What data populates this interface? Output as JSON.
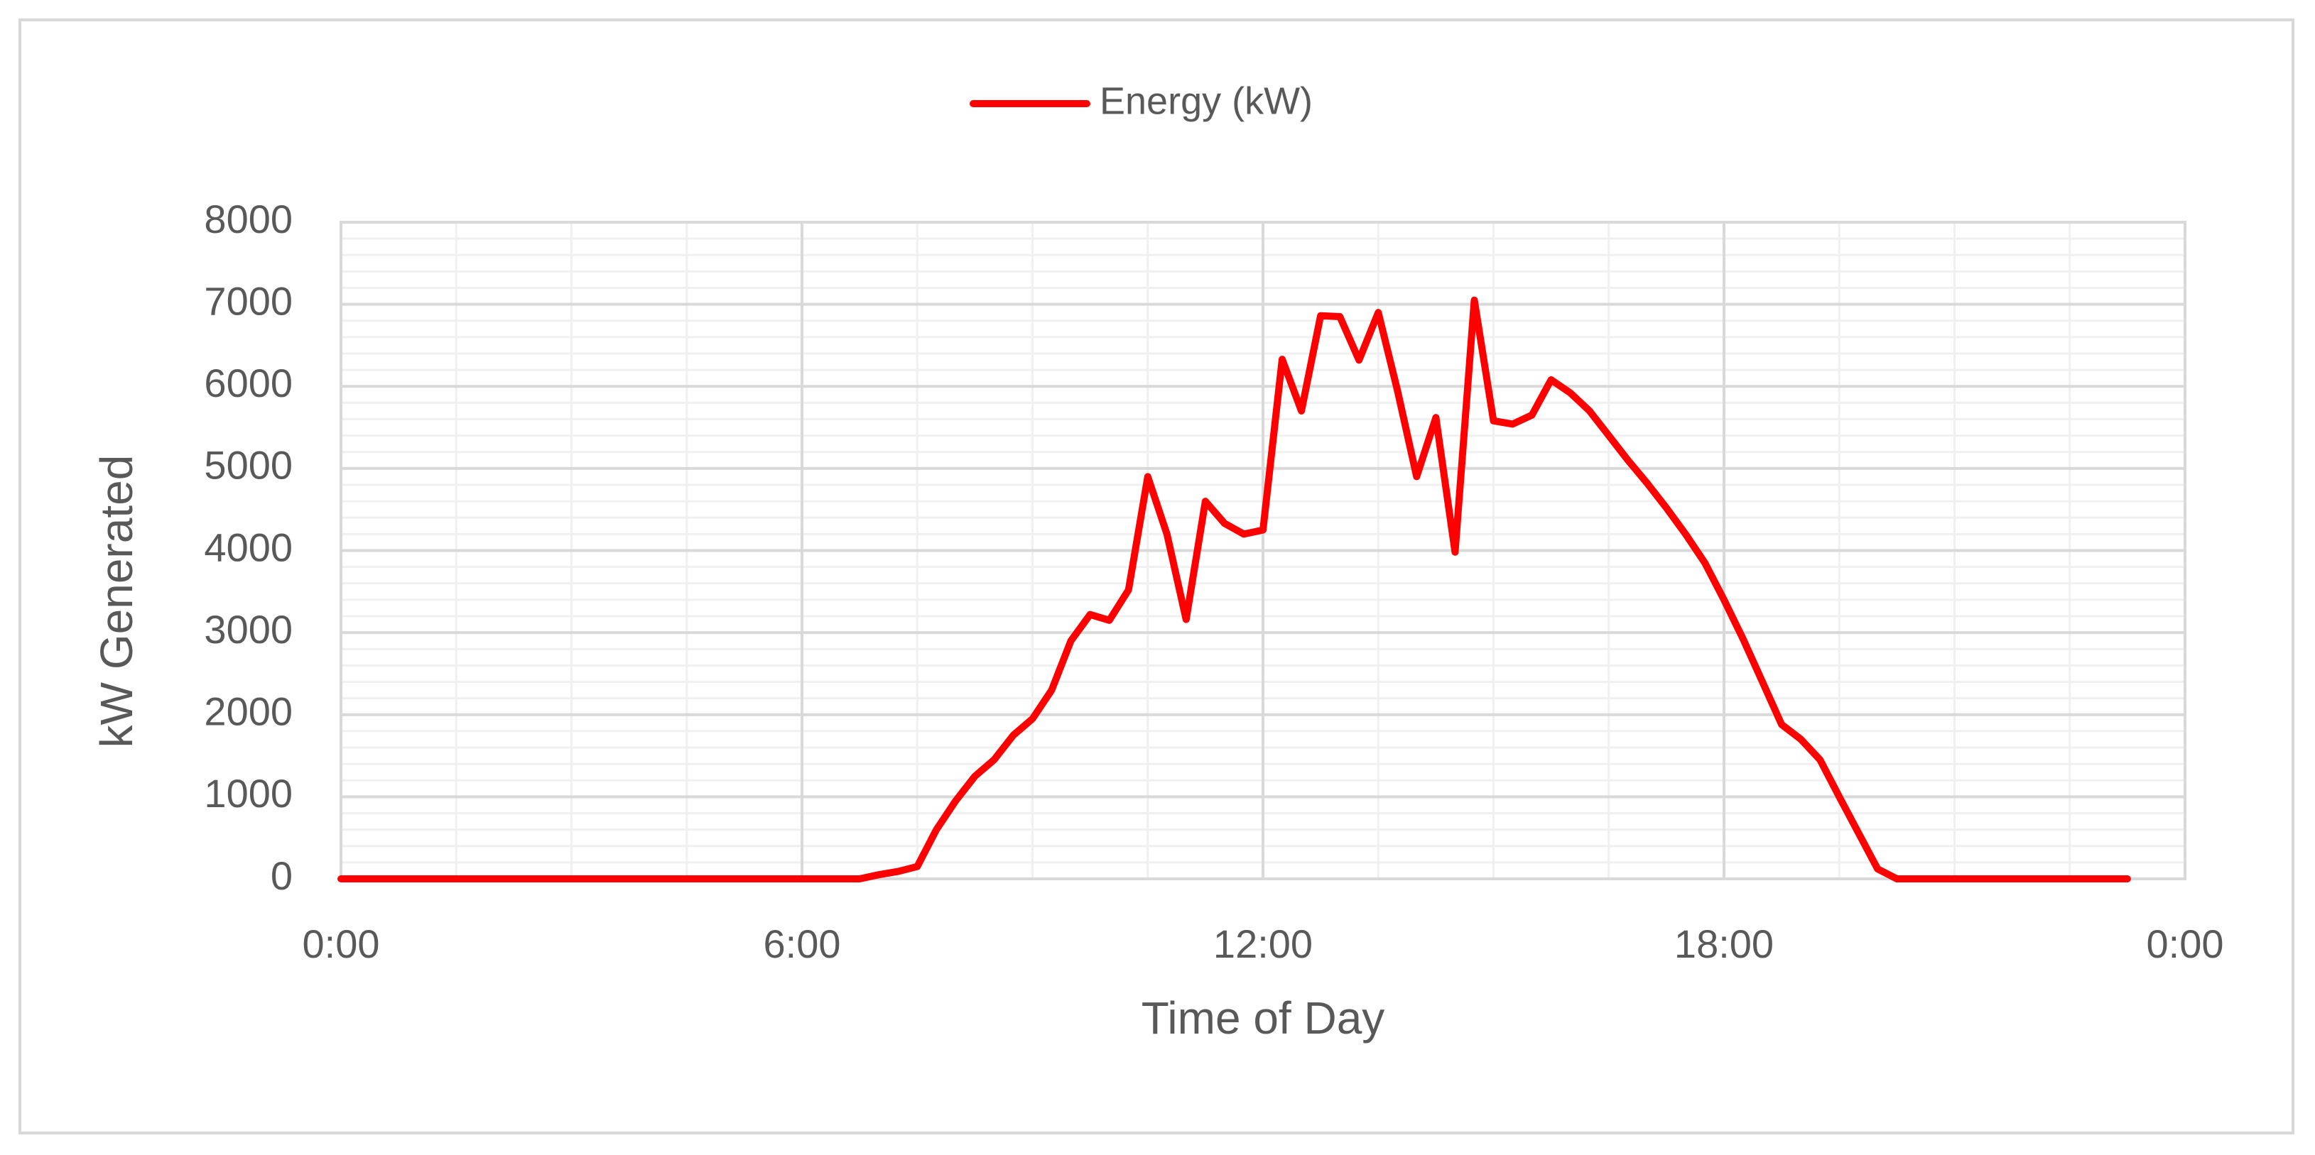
{
  "chart_data": {
    "type": "line",
    "title": "",
    "xlabel": "Time of Day",
    "ylabel": "kW Generated",
    "legend": {
      "position": "top-center",
      "entries": [
        "Energy (kW)"
      ]
    },
    "grid": true,
    "xlim": [
      0,
      24
    ],
    "ylim": [
      0,
      8000
    ],
    "x_ticks": [
      "0:00",
      "6:00",
      "12:00",
      "18:00",
      "0:00"
    ],
    "y_ticks": [
      "0",
      "1000",
      "2000",
      "3000",
      "4000",
      "5000",
      "6000",
      "7000",
      "8000"
    ],
    "series": [
      {
        "name": "Energy (kW)",
        "color": "#ff0000",
        "x": [
          0,
          6.75,
          7.0,
          7.25,
          7.5,
          7.75,
          8.0,
          8.25,
          8.5,
          8.75,
          9.0,
          9.25,
          9.5,
          9.75,
          10.0,
          10.25,
          10.5,
          10.75,
          11.0,
          11.25,
          11.5,
          11.75,
          12.0,
          12.25,
          12.5,
          12.75,
          13.0,
          13.25,
          13.5,
          13.75,
          14.0,
          14.25,
          14.5,
          14.75,
          15.0,
          15.25,
          15.5,
          15.75,
          16.0,
          16.25,
          16.5,
          16.75,
          17.0,
          17.25,
          17.5,
          17.75,
          18.0,
          18.25,
          18.5,
          18.75,
          19.0,
          19.25,
          19.5,
          19.75,
          20.0,
          20.25,
          20.5,
          23.25
        ],
        "values": [
          0,
          0,
          50,
          90,
          150,
          600,
          950,
          1250,
          1450,
          1750,
          1950,
          2300,
          2900,
          3220,
          3150,
          3520,
          4900,
          4200,
          3160,
          4600,
          4330,
          4200,
          4250,
          6330,
          5700,
          6860,
          6850,
          6320,
          6900,
          5950,
          4900,
          5620,
          3980,
          7050,
          5580,
          5540,
          5650,
          6080,
          5920,
          5700,
          5400,
          5100,
          4820,
          4520,
          4200,
          3850,
          3400,
          2920,
          2400,
          1880,
          1700,
          1450,
          1000,
          560,
          120,
          0,
          0,
          0
        ]
      }
    ]
  }
}
